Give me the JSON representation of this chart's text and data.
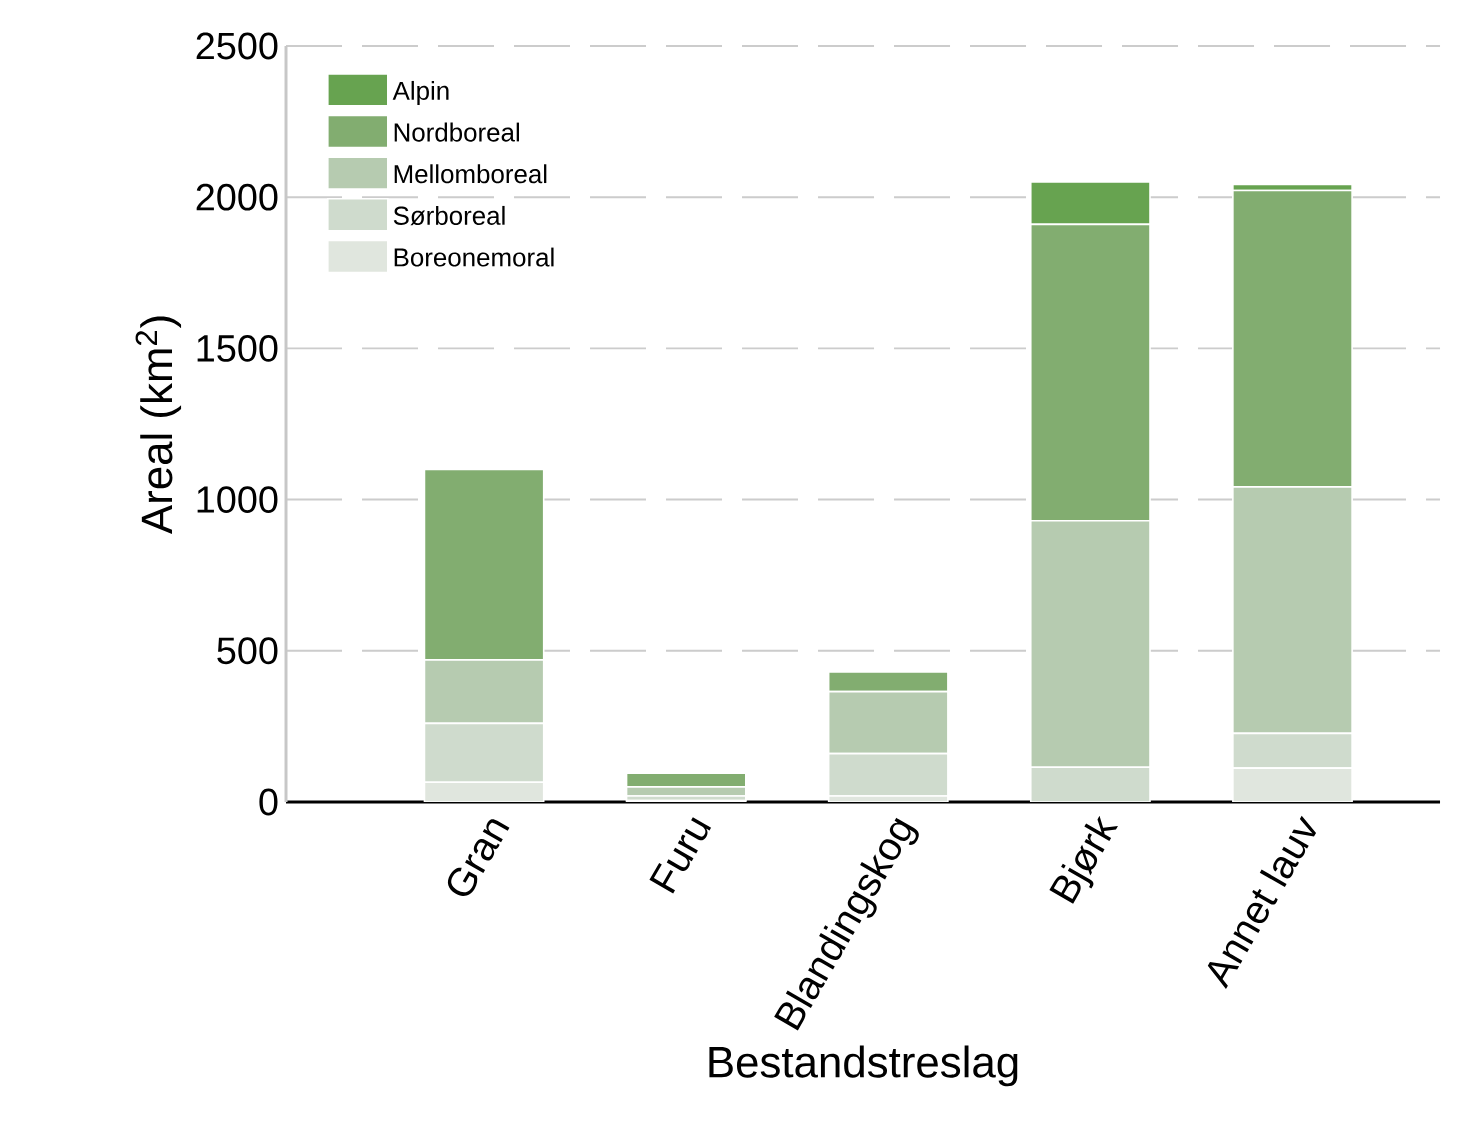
{
  "chart_data": {
    "type": "bar",
    "stacked": true,
    "xlabel": "Bestandstreslag",
    "ylabel": "Areal (km$^{2}$)",
    "categories": [
      "Gran",
      "Furu",
      "Blandingskog",
      "Bjørk",
      "Annet lauv"
    ],
    "series": [
      {
        "name": "Boreonemoral",
        "color": "#e0e6de",
        "values": [
          65,
          5,
          20,
          0,
          112
        ]
      },
      {
        "name": "Sørboreal",
        "color": "#cfdbcd",
        "values": [
          195,
          15,
          140,
          115,
          115
        ]
      },
      {
        "name": "Mellomboreal",
        "color": "#b6cbb0",
        "values": [
          210,
          30,
          205,
          815,
          815
        ]
      },
      {
        "name": "Nordboreal",
        "color": "#82ad70",
        "values": [
          630,
          45,
          65,
          980,
          980
        ]
      },
      {
        "name": "Alpin",
        "color": "#67a350",
        "values": [
          0,
          0,
          0,
          140,
          20
        ]
      }
    ],
    "ylim": [
      0,
      2500
    ],
    "yticks": [
      0,
      500,
      1000,
      1500,
      2000,
      2500
    ],
    "grid": "y",
    "legend": "top left"
  }
}
